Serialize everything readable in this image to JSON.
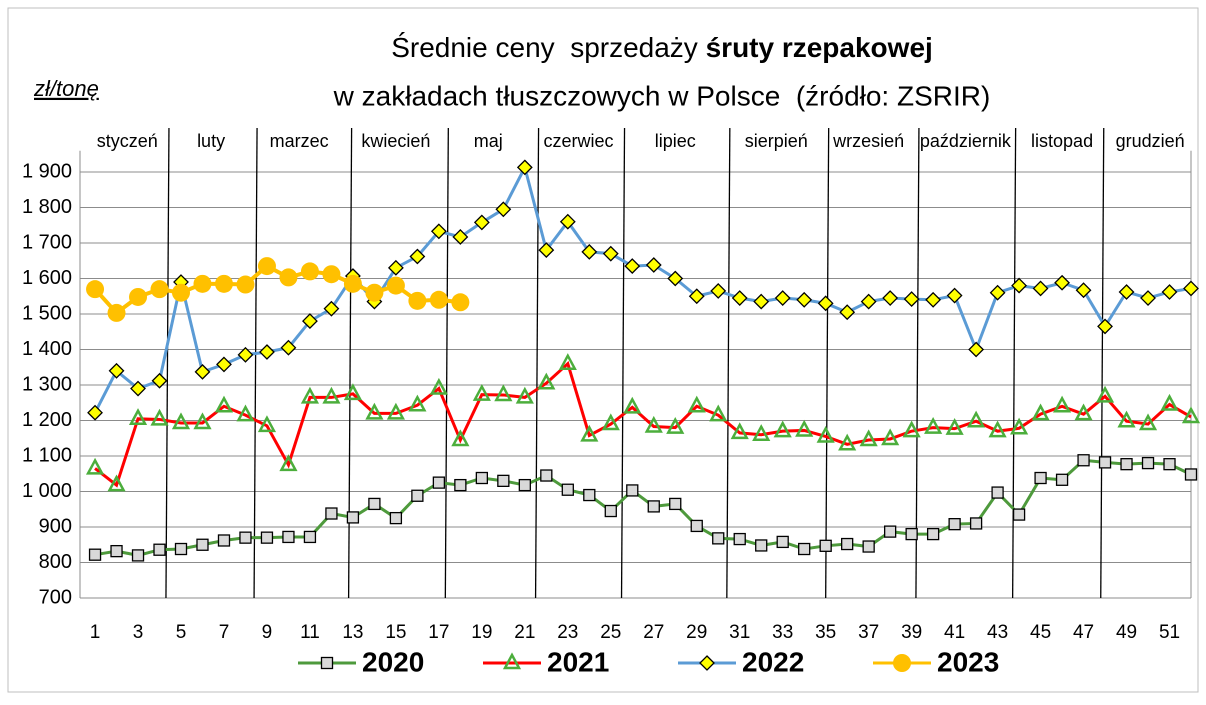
{
  "chart_data": {
    "type": "line",
    "title": {
      "line1": "Średnie ceny  sprzedaży ",
      "line1_bold": "śruty rzepakowej",
      "line2": "w zakładach tłuszczowych w Polsce  (źródło: ZSRIR)"
    },
    "y_label": "zł/tonę",
    "months": [
      "styczeń",
      "luty",
      "marzec",
      "kwiecień",
      "maj",
      "czerwiec",
      "lipiec",
      "sierpień",
      "wrzesień",
      "październik",
      "listopad",
      "grudzień"
    ],
    "x": [
      1,
      2,
      3,
      4,
      5,
      6,
      7,
      8,
      9,
      10,
      11,
      12,
      13,
      14,
      15,
      16,
      17,
      18,
      19,
      20,
      21,
      22,
      23,
      24,
      25,
      26,
      27,
      28,
      29,
      30,
      31,
      32,
      33,
      34,
      35,
      36,
      37,
      38,
      39,
      40,
      41,
      42,
      43,
      44,
      45,
      46,
      47,
      48,
      49,
      50,
      51,
      52
    ],
    "xlim": [
      0.3,
      52
    ],
    "xticks": [
      1,
      3,
      5,
      7,
      9,
      11,
      13,
      15,
      17,
      19,
      21,
      23,
      25,
      27,
      29,
      31,
      33,
      35,
      37,
      39,
      41,
      43,
      45,
      47,
      49,
      51
    ],
    "ylim": [
      700,
      1960
    ],
    "yticks": [
      {
        "value": 700,
        "label": "700"
      },
      {
        "value": 800,
        "label": "800"
      },
      {
        "value": 900,
        "label": "900"
      },
      {
        "value": 1000,
        "label": "1 000"
      },
      {
        "value": 1100,
        "label": "1 100"
      },
      {
        "value": 1200,
        "label": "1 200"
      },
      {
        "value": 1300,
        "label": "1 300"
      },
      {
        "value": 1400,
        "label": "1 400"
      },
      {
        "value": 1500,
        "label": "1 500"
      },
      {
        "value": 1600,
        "label": "1 600"
      },
      {
        "value": 1700,
        "label": "1 700"
      },
      {
        "value": 1800,
        "label": "1 800"
      },
      {
        "value": 1900,
        "label": "1 900"
      }
    ],
    "grid": true,
    "legend": "bottom",
    "series": [
      {
        "name": "2020",
        "color": "#4e9a3c",
        "marker": "square",
        "marker_color": "#d9d9d9",
        "values": [
          822,
          832,
          820,
          836,
          838,
          850,
          862,
          870,
          870,
          872,
          872,
          938,
          927,
          965,
          925,
          988,
          1025,
          1018,
          1038,
          1030,
          1018,
          1045,
          1005,
          990,
          945,
          1003,
          958,
          965,
          903,
          868,
          866,
          848,
          858,
          838,
          847,
          852,
          845,
          887,
          880,
          880,
          908,
          910,
          997,
          935,
          1038,
          1033,
          1088,
          1082,
          1077,
          1080,
          1077,
          1048
        ]
      },
      {
        "name": "2021",
        "color": "#ff0000",
        "marker": "triangle",
        "marker_color": "#4cae3c",
        "values": [
          1065,
          1018,
          1205,
          1203,
          1193,
          1193,
          1240,
          1215,
          1185,
          1075,
          1265,
          1265,
          1275,
          1220,
          1220,
          1243,
          1290,
          1145,
          1273,
          1272,
          1265,
          1305,
          1360,
          1158,
          1190,
          1237,
          1183,
          1180,
          1240,
          1215,
          1165,
          1160,
          1170,
          1172,
          1155,
          1133,
          1145,
          1148,
          1170,
          1180,
          1177,
          1198,
          1170,
          1178,
          1218,
          1240,
          1218,
          1268,
          1198,
          1190,
          1245,
          1210
        ]
      },
      {
        "name": "2022",
        "color": "#5b9bd5",
        "marker": "diamond",
        "marker_color": "#ffff00",
        "values": [
          1222,
          1340,
          1290,
          1312,
          1590,
          1337,
          1358,
          1385,
          1393,
          1405,
          1480,
          1515,
          1607,
          1535,
          1630,
          1662,
          1733,
          1717,
          1758,
          1795,
          1913,
          1680,
          1760,
          1675,
          1670,
          1635,
          1638,
          1600,
          1550,
          1565,
          1545,
          1535,
          1545,
          1540,
          1530,
          1505,
          1535,
          1545,
          1542,
          1540,
          1552,
          1400,
          1560,
          1580,
          1572,
          1588,
          1567,
          1465,
          1562,
          1545,
          1562,
          1572
        ]
      },
      {
        "name": "2023",
        "color": "#ffc000",
        "marker": "circle",
        "marker_color": "#ffc000",
        "values": [
          1570,
          1503,
          1548,
          1570,
          1560,
          1585,
          1585,
          1583,
          1635,
          1603,
          1620,
          1612,
          1585,
          1560,
          1580,
          1537,
          1540,
          1533,
          null,
          null,
          null,
          null,
          null,
          null,
          null,
          null,
          null,
          null,
          null,
          null,
          null,
          null,
          null,
          null,
          null,
          null,
          null,
          null,
          null,
          null,
          null,
          null,
          null,
          null,
          null,
          null,
          null,
          null,
          null,
          null,
          null,
          null
        ]
      }
    ]
  }
}
